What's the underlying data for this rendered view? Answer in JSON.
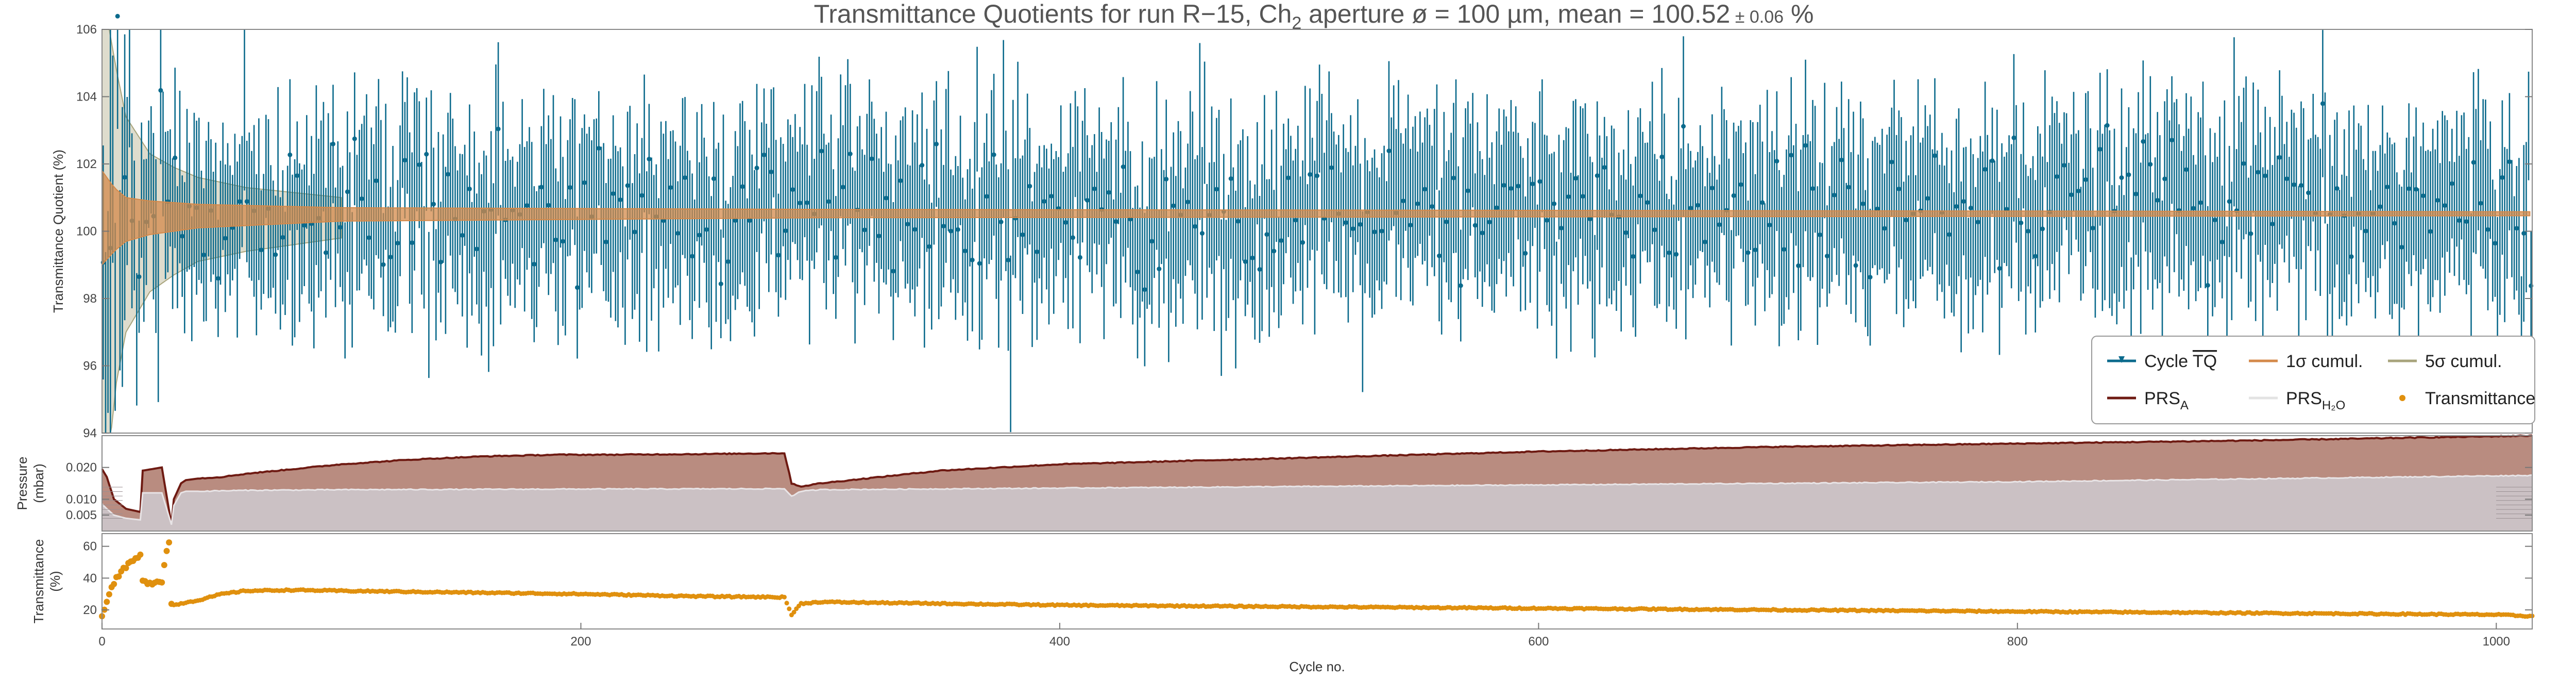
{
  "title": {
    "prefix": "Transmittance Quotients for run R−15, Ch",
    "sub": "2",
    "middle": " aperture ø = 100 µm, mean = 100.52",
    "pm": " ± 0.06",
    "suffix": " %"
  },
  "chart_data": [
    {
      "type": "line",
      "panel": "top",
      "ylabel": "Transmittance Quotient (%)",
      "xlim": [
        0,
        1015
      ],
      "ylim": [
        94,
        106
      ],
      "yticks": [
        94,
        96,
        98,
        100,
        102,
        104,
        106
      ],
      "grid": false,
      "mean": 100.52,
      "mean_uncertainty": 0.06,
      "legend_position": "lower-right",
      "series": [
        {
          "name": "Cycle TQ",
          "color": "#0b6a8c",
          "style": "points with error bars",
          "typical_value": 100.5,
          "typical_error": 2.0,
          "range": [
            96.4,
            104.7
          ]
        },
        {
          "name": "1σ cumul.",
          "color": "#d4894a",
          "style": "band",
          "x": [
            0,
            5,
            10,
            20,
            40,
            100,
            300,
            1015
          ],
          "lower": [
            99.0,
            99.4,
            99.7,
            99.9,
            100.1,
            100.3,
            100.4,
            100.46
          ],
          "upper": [
            101.8,
            101.3,
            101.0,
            100.9,
            100.8,
            100.7,
            100.65,
            100.58
          ]
        },
        {
          "name": "5σ cumul.",
          "color": "#a8a47c",
          "style": "band",
          "x": [
            0,
            3,
            6,
            10,
            20,
            30,
            40,
            60,
            100
          ],
          "lower": [
            92.0,
            93.5,
            95.5,
            97.0,
            98.2,
            98.7,
            99.1,
            99.4,
            99.8
          ],
          "upper": [
            106.0,
            106.0,
            104.8,
            103.4,
            102.3,
            101.9,
            101.6,
            101.3,
            101.0
          ]
        }
      ]
    },
    {
      "type": "area",
      "panel": "middle",
      "ylabel": [
        "Pressure",
        "(mbar)"
      ],
      "xlim": [
        0,
        1015
      ],
      "ylim": [
        0.0,
        0.03
      ],
      "yticks": [
        0.005,
        0.01,
        0.02
      ],
      "ytick_labels": [
        "0.005",
        "0.010",
        "0.020"
      ],
      "series": [
        {
          "name": "PRS_A",
          "color": "#6e1a12",
          "fill": "#b98c80",
          "x": [
            0,
            2,
            5,
            10,
            16,
            17,
            25,
            29,
            30,
            33,
            35,
            40,
            50,
            60,
            80,
            100,
            130,
            160,
            190,
            210,
            250,
            285,
            288,
            292,
            300,
            350,
            400,
            500,
            600,
            700,
            800,
            900,
            1015
          ],
          "y": [
            0.0195,
            0.017,
            0.01,
            0.007,
            0.006,
            0.019,
            0.02,
            0.002,
            0.01,
            0.015,
            0.016,
            0.0165,
            0.017,
            0.018,
            0.0195,
            0.021,
            0.0225,
            0.0235,
            0.024,
            0.024,
            0.0242,
            0.0245,
            0.015,
            0.014,
            0.015,
            0.019,
            0.021,
            0.023,
            0.025,
            0.0265,
            0.0275,
            0.0285,
            0.03
          ]
        },
        {
          "name": "PRS_H2O",
          "color": "#e8e4e6",
          "fill": "#cbc1c4",
          "x": [
            0,
            2,
            5,
            10,
            16,
            17,
            25,
            29,
            30,
            33,
            35,
            40,
            60,
            100,
            200,
            285,
            288,
            292,
            300,
            400,
            600,
            800,
            1015
          ],
          "y": [
            0.0085,
            0.007,
            0.005,
            0.004,
            0.0035,
            0.012,
            0.012,
            0.002,
            0.008,
            0.012,
            0.0125,
            0.0125,
            0.0128,
            0.013,
            0.0132,
            0.0133,
            0.011,
            0.0125,
            0.013,
            0.0135,
            0.0145,
            0.0155,
            0.0175
          ]
        }
      ]
    },
    {
      "type": "scatter",
      "panel": "bottom",
      "ylabel": [
        "Transmittance",
        "(%)"
      ],
      "xlabel": "Cycle no.",
      "xlim": [
        0,
        1015
      ],
      "ylim": [
        8,
        68
      ],
      "yticks": [
        20,
        40,
        60
      ],
      "xticks": [
        0,
        200,
        400,
        600,
        800,
        1000
      ],
      "series": [
        {
          "name": "Transmittance",
          "color": "#e0900e",
          "x": [
            0,
            2,
            4,
            6,
            8,
            10,
            12,
            14,
            16,
            17,
            19,
            21,
            23,
            25,
            27,
            28,
            29,
            30,
            33,
            36,
            40,
            45,
            50,
            55,
            60,
            80,
            100,
            150,
            200,
            250,
            285,
            288,
            292,
            300,
            400,
            500,
            600,
            700,
            800,
            900,
            1000,
            1015
          ],
          "y": [
            16,
            26,
            34,
            40,
            44,
            47,
            50,
            52,
            54,
            38,
            37,
            37,
            38,
            38,
            58,
            62,
            24,
            23,
            24,
            25,
            26,
            28,
            30,
            31,
            32,
            32.5,
            32,
            31,
            30,
            28.5,
            28,
            17,
            24,
            25,
            23,
            22,
            21,
            20,
            19,
            18,
            17,
            16
          ]
        }
      ]
    }
  ],
  "legend": {
    "items": [
      {
        "label": "Cycle ",
        "label_over": "TQ",
        "color": "#0b6a8c",
        "kind": "errpoint"
      },
      {
        "label": "1σ cumul.",
        "color": "#d4894a",
        "kind": "line"
      },
      {
        "label": "5σ cumul.",
        "color": "#a8a47c",
        "kind": "line"
      },
      {
        "label": "PRS",
        "sub": "A",
        "color": "#6e1a12",
        "kind": "line"
      },
      {
        "label": "PRS",
        "sub": "H₂O",
        "color": "#e3e3e3",
        "kind": "line"
      },
      {
        "label": "Transmittance",
        "color": "#e0900e",
        "kind": "dot"
      }
    ]
  },
  "colors": {
    "tq": "#0b6a8c",
    "sigma1": "#d4894a",
    "sigma5": "#a8a47c",
    "prsA": "#6e1a12",
    "prsA_fill": "#b98c80",
    "prsH2O_fill": "#cbc1c4",
    "transmittance": "#e0900e",
    "frame": "#888888"
  }
}
